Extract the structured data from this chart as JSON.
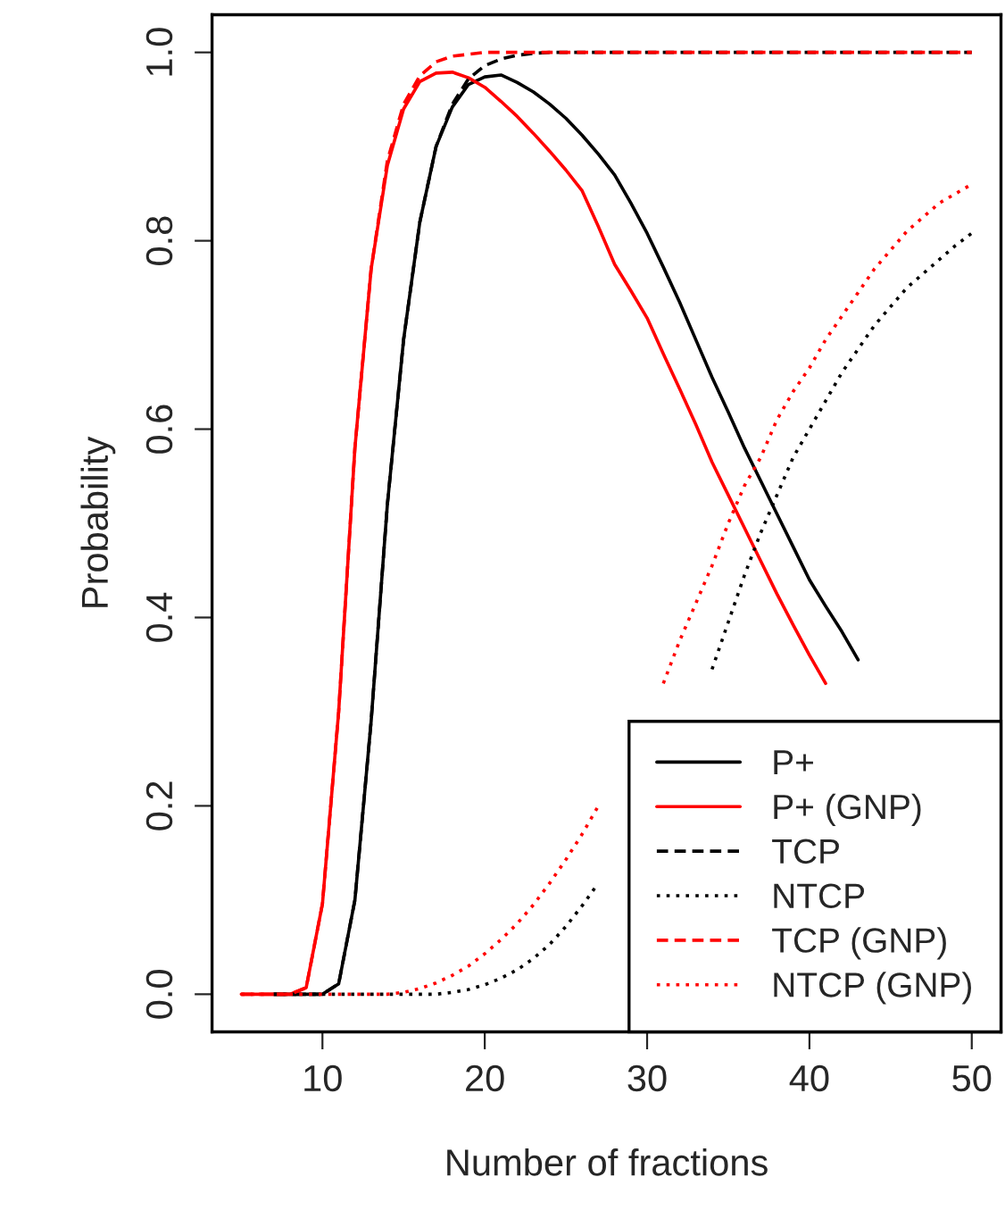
{
  "chart_data": {
    "type": "line",
    "xlabel": "Number of fractions",
    "ylabel": "Probability",
    "x": [
      5,
      6,
      7,
      8,
      9,
      10,
      11,
      12,
      13,
      14,
      15,
      16,
      17,
      18,
      19,
      20,
      21,
      22,
      23,
      24,
      25,
      26,
      27,
      28,
      29,
      30,
      31,
      32,
      33,
      34,
      35,
      36,
      37,
      38,
      39,
      40,
      41,
      42,
      43,
      44,
      45,
      46,
      47,
      48,
      49,
      50
    ],
    "xlim": [
      3.2,
      51.8
    ],
    "xticks": [
      10,
      20,
      30,
      40,
      50
    ],
    "ylim": [
      -0.04,
      1.04
    ],
    "yticks": [
      {
        "value": 0,
        "label": "0.0"
      },
      {
        "value": 0.2,
        "label": "0.2"
      },
      {
        "value": 0.4,
        "label": "0.4"
      },
      {
        "value": 0.6,
        "label": "0.6"
      },
      {
        "value": 0.8,
        "label": "0.8"
      },
      {
        "value": 1.0,
        "label": "1.0"
      }
    ],
    "grid": false,
    "legend": "bottom right",
    "marker": "none",
    "series": [
      {
        "name": "P+",
        "color": "#000000",
        "line_style": "solid",
        "values": [
          null,
          null,
          0,
          0,
          0,
          0,
          0.011,
          0.1,
          0.29,
          0.52,
          0.695,
          0.82,
          0.9,
          0.942,
          0.966,
          0.974,
          0.976,
          0.968,
          0.958,
          0.945,
          0.93,
          0.912,
          0.892,
          0.87,
          0.84,
          0.808,
          0.772,
          0.735,
          0.695,
          0.655,
          0.618,
          0.58,
          0.545,
          0.51,
          0.475,
          0.44,
          0.412,
          0.385,
          0.355,
          null,
          null,
          null,
          null,
          null,
          null,
          null
        ]
      },
      {
        "name": "P+ (GNP)",
        "color": "#ff0000",
        "line_style": "solid",
        "values": [
          0,
          0,
          0,
          0,
          0.007,
          0.096,
          0.3,
          0.58,
          0.77,
          0.88,
          0.94,
          0.969,
          0.978,
          0.979,
          0.973,
          0.963,
          0.948,
          0.932,
          0.914,
          0.895,
          0.875,
          0.853,
          0.815,
          0.775,
          0.747,
          0.718,
          0.68,
          0.643,
          0.605,
          0.565,
          0.53,
          0.495,
          0.46,
          0.425,
          0.392,
          0.36,
          0.33,
          null,
          null,
          null,
          null,
          null,
          null,
          null,
          null,
          null
        ]
      },
      {
        "name": "TCP",
        "color": "#000000",
        "line_style": "dashed",
        "values": [
          null,
          null,
          0,
          0,
          0,
          0,
          0.011,
          0.1,
          0.29,
          0.52,
          0.695,
          0.82,
          0.9,
          0.945,
          0.972,
          0.986,
          0.993,
          0.997,
          0.999,
          1,
          1,
          1,
          1,
          1,
          1,
          1,
          1,
          1,
          1,
          1,
          1,
          1,
          1,
          1,
          1,
          1,
          1,
          1,
          1,
          1,
          1,
          1,
          1,
          1,
          1,
          1
        ]
      },
      {
        "name": "NTCP",
        "color": "#000000",
        "line_style": "dotted",
        "values": [
          null,
          null,
          0,
          0,
          0,
          0,
          0,
          0,
          0,
          0,
          0,
          0,
          0,
          0.002,
          0.005,
          0.01,
          0.017,
          0.026,
          0.038,
          0.053,
          0.072,
          0.094,
          0.118,
          null,
          null,
          null,
          null,
          null,
          null,
          0.345,
          0.395,
          0.445,
          0.49,
          0.53,
          0.57,
          0.6,
          0.63,
          0.66,
          0.685,
          0.71,
          0.73,
          0.75,
          0.765,
          0.78,
          0.795,
          0.808
        ]
      },
      {
        "name": "TCP (GNP)",
        "color": "#ff0000",
        "line_style": "dashed",
        "values": [
          0,
          0,
          0,
          0,
          0.007,
          0.096,
          0.3,
          0.58,
          0.77,
          0.885,
          0.945,
          0.975,
          0.99,
          0.996,
          0.998,
          1,
          1,
          1,
          1,
          1,
          1,
          1,
          1,
          1,
          1,
          1,
          1,
          1,
          1,
          1,
          1,
          1,
          1,
          1,
          1,
          1,
          1,
          1,
          1,
          1,
          1,
          1,
          1,
          1,
          1,
          1
        ]
      },
      {
        "name": "NTCP (GNP)",
        "color": "#ff0000",
        "line_style": "dotted",
        "values": [
          0,
          0,
          0,
          0,
          0,
          0,
          0,
          0,
          0,
          0,
          0.002,
          0.006,
          0.012,
          0.02,
          0.03,
          0.043,
          0.058,
          0.075,
          0.095,
          0.118,
          0.143,
          0.17,
          0.2,
          null,
          null,
          null,
          0.33,
          0.375,
          0.415,
          0.455,
          0.5,
          0.54,
          0.57,
          0.61,
          0.64,
          0.665,
          0.695,
          0.72,
          0.745,
          0.77,
          0.79,
          0.81,
          0.825,
          0.84,
          0.85,
          0.86
        ]
      }
    ]
  }
}
